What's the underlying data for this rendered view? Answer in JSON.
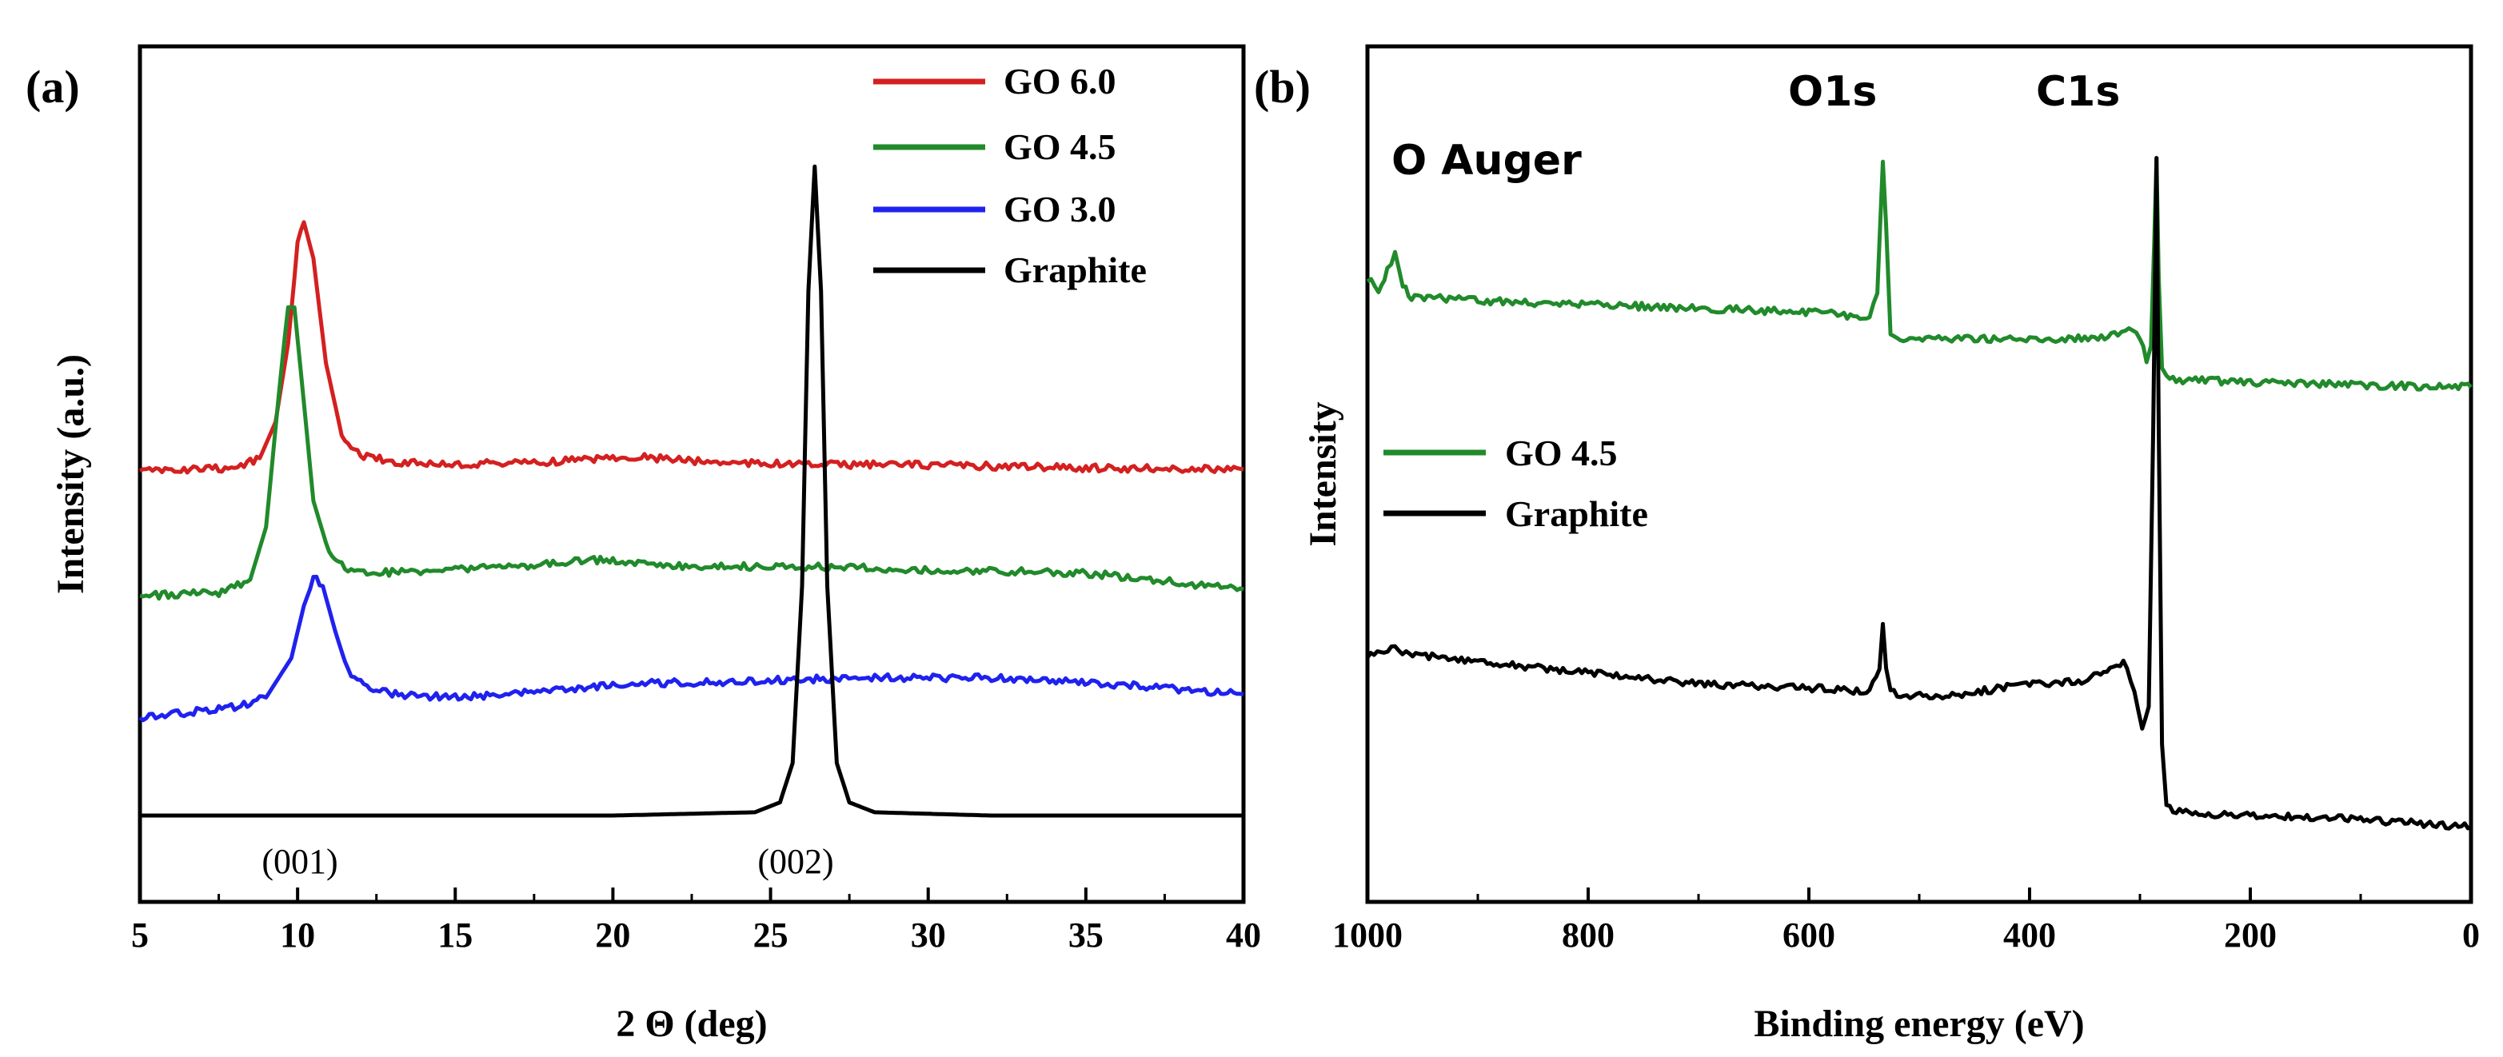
{
  "chart_data": [
    {
      "type": "line",
      "panel_label": "(a)",
      "title": "",
      "xlabel": "2 Θ (deg)",
      "ylabel": "Intensity (a.u.)",
      "xlim": [
        5,
        40
      ],
      "ylim": [
        0,
        1
      ],
      "xticks": [
        "5",
        "10",
        "15",
        "20",
        "25",
        "30",
        "35",
        "40"
      ],
      "legend": {
        "placement": "top-right",
        "entries": [
          {
            "label": "GO 6.0",
            "color": "#d42020"
          },
          {
            "label": "GO 4.5",
            "color": "#218a2b"
          },
          {
            "label": "GO 3.0",
            "color": "#1f22ee"
          },
          {
            "label": "Graphite",
            "color": "#000000"
          }
        ]
      },
      "annotations": [
        {
          "text": "(001)",
          "x": 10.3
        },
        {
          "text": "(002)",
          "x": 26.4
        }
      ],
      "series": [
        {
          "name": "GO 6.0",
          "color": "#d42020",
          "x": [
            5,
            8,
            8.8,
            9.3,
            9.7,
            10.0,
            10.2,
            10.5,
            10.9,
            11.4,
            12.0,
            13.0,
            15,
            18,
            20.5,
            23,
            26,
            30,
            35,
            40
          ],
          "y": [
            0.525,
            0.53,
            0.545,
            0.6,
            0.72,
            0.87,
            0.905,
            0.85,
            0.69,
            0.58,
            0.55,
            0.54,
            0.535,
            0.54,
            0.548,
            0.54,
            0.535,
            0.535,
            0.53,
            0.528
          ]
        },
        {
          "name": "GO 4.5",
          "color": "#218a2b",
          "x": [
            5,
            7.5,
            8.5,
            9.0,
            9.4,
            9.7,
            9.9,
            10.2,
            10.5,
            11.0,
            11.6,
            12.5,
            15,
            17,
            19.5,
            22,
            26,
            30,
            35,
            40
          ],
          "y": [
            0.335,
            0.34,
            0.36,
            0.44,
            0.64,
            0.78,
            0.775,
            0.63,
            0.48,
            0.4,
            0.375,
            0.37,
            0.375,
            0.38,
            0.39,
            0.38,
            0.38,
            0.375,
            0.37,
            0.345
          ]
        },
        {
          "name": "GO 3.0",
          "color": "#1f22ee",
          "x": [
            5,
            8,
            9.0,
            9.8,
            10.2,
            10.5,
            10.8,
            11.2,
            11.6,
            12.2,
            13,
            15,
            18,
            20,
            24,
            28,
            32,
            36,
            40
          ],
          "y": [
            0.15,
            0.165,
            0.18,
            0.24,
            0.32,
            0.365,
            0.35,
            0.28,
            0.22,
            0.195,
            0.185,
            0.18,
            0.19,
            0.2,
            0.205,
            0.21,
            0.21,
            0.2,
            0.185
          ]
        },
        {
          "name": "Graphite",
          "color": "#000000",
          "x": [
            5,
            20,
            24.5,
            25.3,
            25.7,
            26.0,
            26.2,
            26.4,
            26.6,
            26.8,
            27.1,
            27.5,
            28.3,
            32,
            40
          ],
          "y": [
            0.0,
            0.0,
            0.005,
            0.02,
            0.08,
            0.35,
            0.8,
            0.99,
            0.8,
            0.35,
            0.08,
            0.02,
            0.005,
            0.0,
            0.0
          ]
        }
      ]
    },
    {
      "type": "line",
      "panel_label": "(b)",
      "title": "",
      "xlabel": "Binding energy (eV)",
      "ylabel": "Intensity",
      "xlim": [
        1000,
        0
      ],
      "ylim": [
        0,
        1
      ],
      "xticks": [
        "1000",
        "800",
        "600",
        "400",
        "200",
        "0"
      ],
      "legend": {
        "placement": "middle-left",
        "entries": [
          {
            "label": "GO 4.5",
            "color": "#218a2b"
          },
          {
            "label": "Graphite",
            "color": "#000000"
          }
        ]
      },
      "annotations": [
        {
          "text": "O Auger",
          "x": 975
        },
        {
          "text": "O1s",
          "x": 532
        },
        {
          "text": "C1s",
          "x": 285
        }
      ],
      "series": [
        {
          "name": "GO 4.5",
          "color": "#218a2b",
          "x": [
            1000,
            990,
            982,
            975,
            968,
            960,
            900,
            800,
            700,
            600,
            545,
            538,
            533,
            530,
            526,
            520,
            500,
            450,
            400,
            350,
            320,
            310,
            300,
            294,
            290,
            287,
            285,
            283,
            280,
            276,
            270,
            200,
            100,
            0
          ],
          "y": [
            0.8,
            0.785,
            0.81,
            0.835,
            0.79,
            0.775,
            0.77,
            0.765,
            0.76,
            0.755,
            0.748,
            0.78,
            0.955,
            0.87,
            0.73,
            0.72,
            0.72,
            0.72,
            0.718,
            0.72,
            0.725,
            0.73,
            0.72,
            0.69,
            0.71,
            0.85,
            0.96,
            0.8,
            0.68,
            0.67,
            0.665,
            0.662,
            0.658,
            0.655
          ]
        },
        {
          "name": "Graphite",
          "color": "#000000",
          "x": [
            1000,
            985,
            975,
            965,
            900,
            800,
            700,
            600,
            545,
            536,
            533,
            530,
            526,
            520,
            470,
            400,
            350,
            330,
            315,
            305,
            298,
            292,
            288,
            285,
            283,
            280,
            276,
            270,
            200,
            100,
            0
          ],
          "y": [
            0.3,
            0.305,
            0.31,
            0.3,
            0.29,
            0.275,
            0.26,
            0.255,
            0.25,
            0.28,
            0.34,
            0.28,
            0.25,
            0.245,
            0.245,
            0.26,
            0.265,
            0.28,
            0.29,
            0.25,
            0.2,
            0.23,
            0.6,
            0.96,
            0.6,
            0.18,
            0.1,
            0.09,
            0.085,
            0.08,
            0.07
          ]
        }
      ]
    }
  ]
}
